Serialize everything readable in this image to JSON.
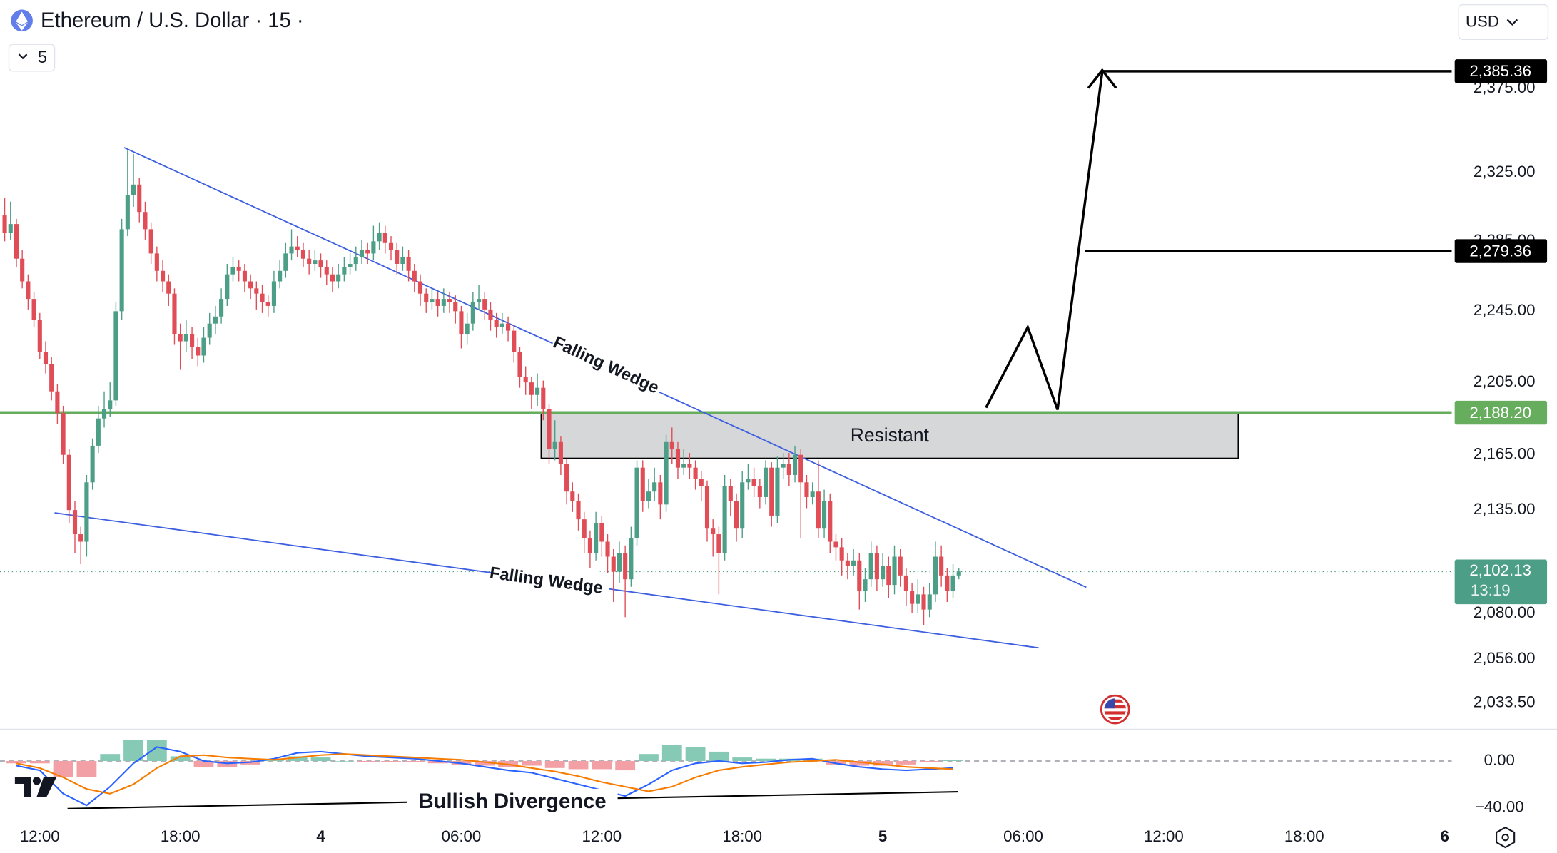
{
  "chart_data": {
    "type": "candlestick",
    "title": "Ethereum / U.S. Dollar · 15 ·",
    "indicator_count": 5,
    "currency": "USD",
    "log_scale": true,
    "grid": false,
    "up_color": "#4c9e87",
    "down_color": "#e04d57",
    "xlim": [
      10.3,
      72.3
    ],
    "ylim": [
      2021,
      2427
    ],
    "xticks": [
      {
        "value": 12,
        "label": "12:00"
      },
      {
        "value": 18,
        "label": "18:00"
      },
      {
        "value": 24,
        "label": "4"
      },
      {
        "value": 30,
        "label": "06:00"
      },
      {
        "value": 36,
        "label": "12:00"
      },
      {
        "value": 42,
        "label": "18:00"
      },
      {
        "value": 48,
        "label": "5"
      },
      {
        "value": 54,
        "label": "06:00"
      },
      {
        "value": 60,
        "label": "12:00"
      },
      {
        "value": 66,
        "label": "18:00"
      },
      {
        "value": 72,
        "label": "6"
      }
    ],
    "yticks": [
      {
        "value": 2033.5,
        "label": "2,033.50"
      },
      {
        "value": 2056,
        "label": "2,056.00"
      },
      {
        "value": 2080,
        "label": "2,080.00"
      },
      {
        "value": 2135,
        "label": "2,135.00"
      },
      {
        "value": 2165,
        "label": "2,165.00"
      },
      {
        "value": 2205,
        "label": "2,205.00"
      },
      {
        "value": 2245,
        "label": "2,245.00"
      },
      {
        "value": 2285,
        "label": "2,285.00"
      },
      {
        "value": 2325,
        "label": "2,325.00"
      },
      {
        "value": 2375,
        "label": "2,375.00"
      }
    ],
    "candles": [
      [
        10.5,
        2300,
        2310,
        2285,
        2290
      ],
      [
        10.75,
        2290,
        2308,
        2286,
        2295
      ],
      [
        11,
        2295,
        2298,
        2270,
        2275
      ],
      [
        11.25,
        2275,
        2280,
        2258,
        2262
      ],
      [
        11.5,
        2262,
        2266,
        2246,
        2252
      ],
      [
        11.75,
        2252,
        2256,
        2236,
        2240
      ],
      [
        12,
        2240,
        2244,
        2218,
        2222
      ],
      [
        12.25,
        2222,
        2228,
        2210,
        2215
      ],
      [
        12.5,
        2215,
        2219,
        2195,
        2200
      ],
      [
        12.75,
        2200,
        2204,
        2182,
        2188
      ],
      [
        13,
        2188,
        2192,
        2160,
        2165
      ],
      [
        13.25,
        2165,
        2168,
        2128,
        2135
      ],
      [
        13.5,
        2135,
        2140,
        2112,
        2122
      ],
      [
        13.75,
        2122,
        2126,
        2106,
        2118
      ],
      [
        14,
        2118,
        2154,
        2110,
        2150
      ],
      [
        14.25,
        2150,
        2174,
        2146,
        2170
      ],
      [
        14.5,
        2170,
        2192,
        2166,
        2185
      ],
      [
        14.75,
        2185,
        2200,
        2180,
        2190
      ],
      [
        15,
        2190,
        2205,
        2186,
        2195
      ],
      [
        15.25,
        2195,
        2250,
        2192,
        2245
      ],
      [
        15.5,
        2245,
        2298,
        2240,
        2292
      ],
      [
        15.75,
        2292,
        2338,
        2288,
        2312
      ],
      [
        16,
        2312,
        2336,
        2305,
        2318
      ],
      [
        16.25,
        2318,
        2322,
        2296,
        2302
      ],
      [
        16.5,
        2302,
        2308,
        2286,
        2292
      ],
      [
        16.75,
        2292,
        2296,
        2272,
        2278
      ],
      [
        17,
        2278,
        2282,
        2262,
        2268
      ],
      [
        17.25,
        2268,
        2274,
        2256,
        2262
      ],
      [
        17.5,
        2262,
        2266,
        2248,
        2255
      ],
      [
        17.75,
        2255,
        2258,
        2226,
        2232
      ],
      [
        18,
        2232,
        2238,
        2212,
        2228
      ],
      [
        18.25,
        2228,
        2240,
        2222,
        2232
      ],
      [
        18.5,
        2232,
        2236,
        2218,
        2225
      ],
      [
        18.75,
        2225,
        2230,
        2214,
        2220
      ],
      [
        19,
        2220,
        2236,
        2216,
        2230
      ],
      [
        19.25,
        2230,
        2244,
        2226,
        2238
      ],
      [
        19.5,
        2238,
        2248,
        2232,
        2242
      ],
      [
        19.75,
        2242,
        2258,
        2238,
        2252
      ],
      [
        20,
        2252,
        2272,
        2248,
        2266
      ],
      [
        20.25,
        2266,
        2276,
        2262,
        2270
      ],
      [
        20.5,
        2270,
        2274,
        2262,
        2268
      ],
      [
        20.75,
        2268,
        2272,
        2256,
        2262
      ],
      [
        21,
        2262,
        2266,
        2252,
        2258
      ],
      [
        21.25,
        2258,
        2262,
        2246,
        2255
      ],
      [
        21.5,
        2255,
        2260,
        2244,
        2250
      ],
      [
        21.75,
        2250,
        2254,
        2242,
        2248
      ],
      [
        22,
        2248,
        2268,
        2244,
        2262
      ],
      [
        22.25,
        2262,
        2274,
        2258,
        2268
      ],
      [
        22.5,
        2268,
        2284,
        2264,
        2278
      ],
      [
        22.75,
        2278,
        2292,
        2274,
        2282
      ],
      [
        23,
        2282,
        2288,
        2276,
        2280
      ],
      [
        23.25,
        2280,
        2284,
        2270,
        2275
      ],
      [
        23.5,
        2275,
        2280,
        2266,
        2272
      ],
      [
        23.75,
        2272,
        2280,
        2268,
        2274
      ],
      [
        24,
        2274,
        2278,
        2264,
        2270
      ],
      [
        24.25,
        2270,
        2274,
        2260,
        2266
      ],
      [
        24.5,
        2266,
        2270,
        2256,
        2262
      ],
      [
        24.75,
        2262,
        2272,
        2258,
        2266
      ],
      [
        25,
        2266,
        2276,
        2262,
        2270
      ],
      [
        25.25,
        2270,
        2278,
        2266,
        2272
      ],
      [
        25.5,
        2272,
        2282,
        2268,
        2276
      ],
      [
        25.75,
        2276,
        2286,
        2272,
        2280
      ],
      [
        26,
        2280,
        2284,
        2272,
        2278
      ],
      [
        26.25,
        2278,
        2294,
        2274,
        2285
      ],
      [
        26.5,
        2285,
        2296,
        2280,
        2290
      ],
      [
        26.75,
        2290,
        2294,
        2278,
        2284
      ],
      [
        27,
        2284,
        2288,
        2274,
        2280
      ],
      [
        27.25,
        2280,
        2284,
        2266,
        2272
      ],
      [
        27.5,
        2272,
        2282,
        2268,
        2276
      ],
      [
        27.75,
        2276,
        2280,
        2262,
        2268
      ],
      [
        28,
        2268,
        2272,
        2256,
        2262
      ],
      [
        28.25,
        2262,
        2266,
        2248,
        2255
      ],
      [
        28.5,
        2255,
        2258,
        2244,
        2250
      ],
      [
        28.75,
        2250,
        2258,
        2246,
        2252
      ],
      [
        29,
        2252,
        2256,
        2242,
        2248
      ],
      [
        29.25,
        2248,
        2258,
        2244,
        2252
      ],
      [
        29.5,
        2252,
        2256,
        2244,
        2250
      ],
      [
        29.75,
        2250,
        2254,
        2238,
        2245
      ],
      [
        30,
        2245,
        2248,
        2224,
        2232
      ],
      [
        30.25,
        2232,
        2244,
        2226,
        2238
      ],
      [
        30.5,
        2238,
        2256,
        2234,
        2250
      ],
      [
        30.75,
        2250,
        2260,
        2246,
        2252
      ],
      [
        31,
        2252,
        2256,
        2240,
        2246
      ],
      [
        31.25,
        2246,
        2250,
        2234,
        2240
      ],
      [
        31.5,
        2240,
        2244,
        2230,
        2236
      ],
      [
        31.75,
        2236,
        2244,
        2232,
        2238
      ],
      [
        32,
        2238,
        2242,
        2228,
        2234
      ],
      [
        32.25,
        2234,
        2237,
        2216,
        2222
      ],
      [
        32.5,
        2222,
        2225,
        2202,
        2208
      ],
      [
        32.75,
        2208,
        2214,
        2198,
        2205
      ],
      [
        33,
        2205,
        2208,
        2190,
        2198
      ],
      [
        33.25,
        2198,
        2210,
        2192,
        2202
      ],
      [
        33.5,
        2202,
        2206,
        2184,
        2190
      ],
      [
        33.75,
        2190,
        2193,
        2160,
        2168
      ],
      [
        34,
        2168,
        2184,
        2162,
        2172
      ],
      [
        34.25,
        2172,
        2175,
        2154,
        2160
      ],
      [
        34.5,
        2160,
        2163,
        2138,
        2145
      ],
      [
        34.75,
        2145,
        2150,
        2134,
        2140
      ],
      [
        35,
        2140,
        2144,
        2124,
        2130
      ],
      [
        35.25,
        2130,
        2134,
        2112,
        2120
      ],
      [
        35.5,
        2120,
        2124,
        2104,
        2112
      ],
      [
        35.75,
        2112,
        2134,
        2108,
        2128
      ],
      [
        36,
        2128,
        2132,
        2110,
        2118
      ],
      [
        36.25,
        2118,
        2122,
        2100,
        2110
      ],
      [
        36.5,
        2110,
        2114,
        2086,
        2102
      ],
      [
        36.75,
        2102,
        2118,
        2096,
        2112
      ],
      [
        37,
        2112,
        2116,
        2078,
        2098
      ],
      [
        37.25,
        2098,
        2126,
        2094,
        2120
      ],
      [
        37.5,
        2120,
        2162,
        2116,
        2158
      ],
      [
        37.75,
        2158,
        2162,
        2134,
        2140
      ],
      [
        38,
        2140,
        2152,
        2136,
        2145
      ],
      [
        38.25,
        2145,
        2158,
        2140,
        2150
      ],
      [
        38.5,
        2150,
        2154,
        2130,
        2138
      ],
      [
        38.75,
        2138,
        2176,
        2134,
        2172
      ],
      [
        39,
        2172,
        2180,
        2160,
        2168
      ],
      [
        39.25,
        2168,
        2172,
        2152,
        2158
      ],
      [
        39.5,
        2158,
        2168,
        2154,
        2160
      ],
      [
        39.75,
        2160,
        2166,
        2152,
        2158
      ],
      [
        40,
        2158,
        2162,
        2146,
        2152
      ],
      [
        40.25,
        2152,
        2156,
        2140,
        2148
      ],
      [
        40.5,
        2148,
        2151,
        2118,
        2125
      ],
      [
        40.75,
        2125,
        2130,
        2110,
        2122
      ],
      [
        41,
        2122,
        2126,
        2090,
        2112
      ],
      [
        41.25,
        2112,
        2154,
        2108,
        2148
      ],
      [
        41.5,
        2148,
        2152,
        2132,
        2140
      ],
      [
        41.75,
        2140,
        2144,
        2118,
        2125
      ],
      [
        42,
        2125,
        2156,
        2120,
        2150
      ],
      [
        42.25,
        2150,
        2160,
        2146,
        2152
      ],
      [
        42.5,
        2152,
        2158,
        2142,
        2148
      ],
      [
        42.75,
        2148,
        2152,
        2136,
        2142
      ],
      [
        43,
        2142,
        2162,
        2138,
        2158
      ],
      [
        43.25,
        2158,
        2161,
        2126,
        2132
      ],
      [
        43.5,
        2132,
        2164,
        2128,
        2158
      ],
      [
        43.75,
        2158,
        2166,
        2152,
        2160
      ],
      [
        44,
        2160,
        2166,
        2148,
        2154
      ],
      [
        44.25,
        2154,
        2170,
        2150,
        2165
      ],
      [
        44.5,
        2165,
        2168,
        2120,
        2150
      ],
      [
        44.75,
        2150,
        2154,
        2136,
        2142
      ],
      [
        45,
        2142,
        2150,
        2138,
        2145
      ],
      [
        45.25,
        2145,
        2162,
        2120,
        2125
      ],
      [
        45.5,
        2125,
        2146,
        2120,
        2140
      ],
      [
        45.75,
        2140,
        2144,
        2112,
        2118
      ],
      [
        46,
        2118,
        2122,
        2108,
        2115
      ],
      [
        46.25,
        2115,
        2120,
        2100,
        2108
      ],
      [
        46.5,
        2108,
        2112,
        2098,
        2105
      ],
      [
        46.75,
        2105,
        2114,
        2100,
        2108
      ],
      [
        47,
        2108,
        2112,
        2082,
        2092
      ],
      [
        47.25,
        2092,
        2104,
        2086,
        2098
      ],
      [
        47.5,
        2098,
        2118,
        2094,
        2112
      ],
      [
        47.75,
        2112,
        2116,
        2092,
        2098
      ],
      [
        48,
        2098,
        2112,
        2094,
        2105
      ],
      [
        48.25,
        2105,
        2110,
        2088,
        2095
      ],
      [
        48.5,
        2095,
        2116,
        2090,
        2110
      ],
      [
        48.75,
        2110,
        2114,
        2094,
        2100
      ],
      [
        49,
        2100,
        2104,
        2084,
        2092
      ],
      [
        49.25,
        2092,
        2096,
        2080,
        2085
      ],
      [
        49.5,
        2085,
        2098,
        2080,
        2090
      ],
      [
        49.75,
        2090,
        2094,
        2074,
        2082
      ],
      [
        50,
        2082,
        2096,
        2078,
        2090
      ],
      [
        50.25,
        2090,
        2118,
        2086,
        2110
      ],
      [
        50.5,
        2110,
        2116,
        2094,
        2100
      ],
      [
        50.75,
        2100,
        2104,
        2086,
        2092
      ],
      [
        51,
        2092,
        2106,
        2088,
        2100
      ],
      [
        51.25,
        2100,
        2104,
        2098,
        2102.13
      ]
    ],
    "levels": [
      {
        "value": 2385.36,
        "label": "2,385.36",
        "color": "#000000"
      },
      {
        "value": 2279.36,
        "label": "2,279.36",
        "color": "#000000"
      },
      {
        "value": 2188.2,
        "label": "2,188.20",
        "color": "#66ad5e"
      }
    ],
    "current": {
      "value": 2102.13,
      "label": "2,102.13",
      "countdown": "13:19",
      "color": "#4c9e87"
    },
    "annotations": {
      "upper_wedge": "Falling Wedge",
      "lower_wedge": "Falling Wedge",
      "resistance": "Resistant",
      "divergence": "Bullish Divergence"
    },
    "macd": {
      "x": [
        11,
        12,
        13,
        14,
        15,
        16,
        17,
        18,
        19,
        20,
        21,
        22,
        23,
        24,
        25,
        26,
        27,
        28,
        29,
        30,
        31,
        32,
        33,
        34,
        35,
        36,
        37,
        38,
        39,
        40,
        41,
        42,
        43,
        44,
        45,
        46,
        47,
        48,
        49,
        50,
        51
      ],
      "macd": [
        -4,
        -8,
        -28,
        -38,
        -22,
        -2,
        12,
        8,
        0,
        -2,
        -1,
        2,
        7,
        8,
        6,
        4,
        3,
        2,
        0,
        -2,
        -5,
        -8,
        -10,
        -15,
        -20,
        -25,
        -30,
        -20,
        -8,
        -2,
        0,
        -2,
        -1,
        1,
        2,
        -2,
        -5,
        -7,
        -8,
        -7,
        -6
      ],
      "signal": [
        -2,
        -6,
        -14,
        -24,
        -28,
        -20,
        -6,
        4,
        5,
        3,
        2,
        1,
        3,
        5,
        6,
        5,
        4,
        3,
        2,
        1,
        -1,
        -3,
        -6,
        -9,
        -13,
        -18,
        -22,
        -26,
        -22,
        -14,
        -8,
        -5,
        -3,
        -1,
        0,
        1,
        -1,
        -3,
        -5,
        -6,
        -7
      ],
      "histogram": [
        -2,
        -2,
        -14,
        -14,
        6,
        18,
        18,
        4,
        -5,
        -5,
        -3,
        1,
        4,
        3,
        0,
        -1,
        -1,
        -1,
        -2,
        -3,
        -4,
        -5,
        -4,
        -6,
        -7,
        -7,
        -8,
        6,
        14,
        12,
        8,
        3,
        2,
        2,
        2,
        -3,
        -4,
        -4,
        -3,
        -1,
        1
      ],
      "macd_color": "#2962ff",
      "signal_color": "#f57c00",
      "pos_color": "#86c9b4",
      "neg_color": "#f2a0a6",
      "y2lim": [
        -51.9,
        24.7
      ],
      "y2ticks": [
        {
          "value": 0,
          "label": "0.00"
        },
        {
          "value": -40,
          "label": "−40.00"
        }
      ]
    }
  }
}
